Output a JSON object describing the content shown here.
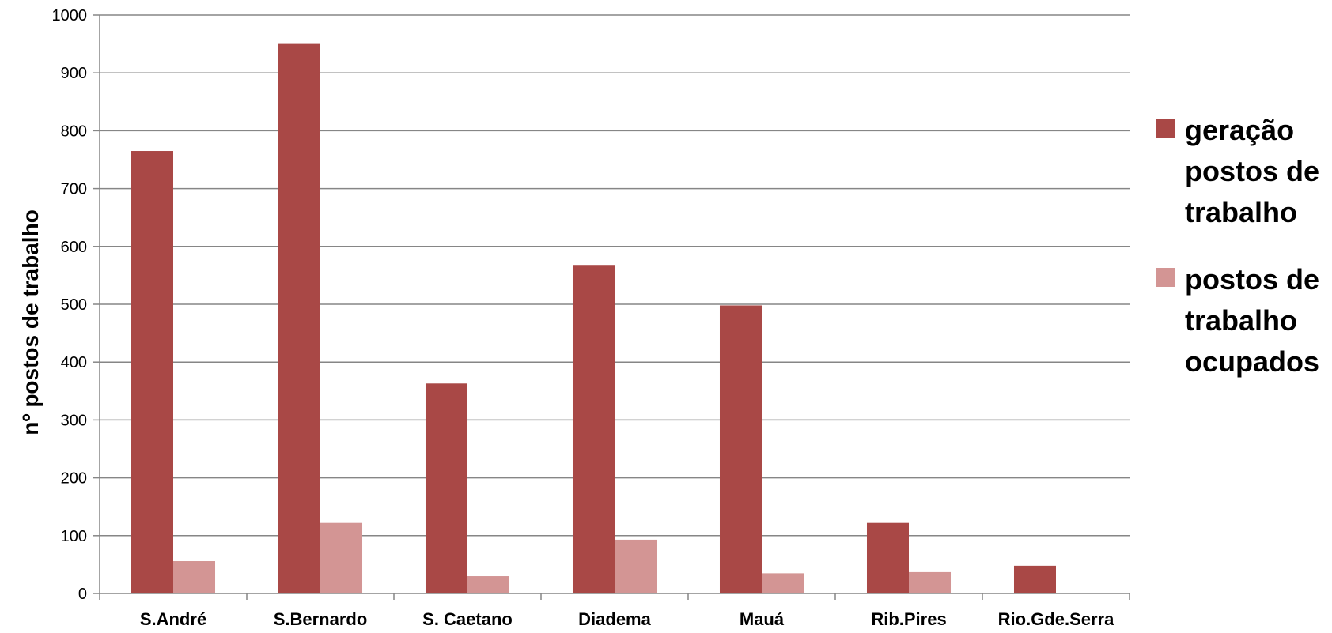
{
  "chart_data": {
    "type": "bar",
    "categories": [
      "S.André",
      "S.Bernardo",
      "S. Caetano",
      "Diadema",
      "Mauá",
      "Rib.Pires",
      "Rio.Gde.Serra"
    ],
    "series": [
      {
        "name": "geração postos de trabalho",
        "name_lines": [
          "geração",
          "postos de",
          "trabalho"
        ],
        "color": "#a94846",
        "values": [
          765,
          950,
          363,
          568,
          498,
          122,
          48
        ]
      },
      {
        "name": "postos de trabalho ocupados",
        "name_lines": [
          "postos de",
          "trabalho",
          "ocupados"
        ],
        "color": "#d39594",
        "values": [
          56,
          122,
          30,
          93,
          35,
          37,
          0
        ]
      }
    ],
    "ylabel": "nº postos de trabalho",
    "ylim": [
      0,
      1000
    ],
    "yticks": [
      0,
      100,
      200,
      300,
      400,
      500,
      600,
      700,
      800,
      900,
      1000
    ],
    "grid": true,
    "legend": "right"
  }
}
